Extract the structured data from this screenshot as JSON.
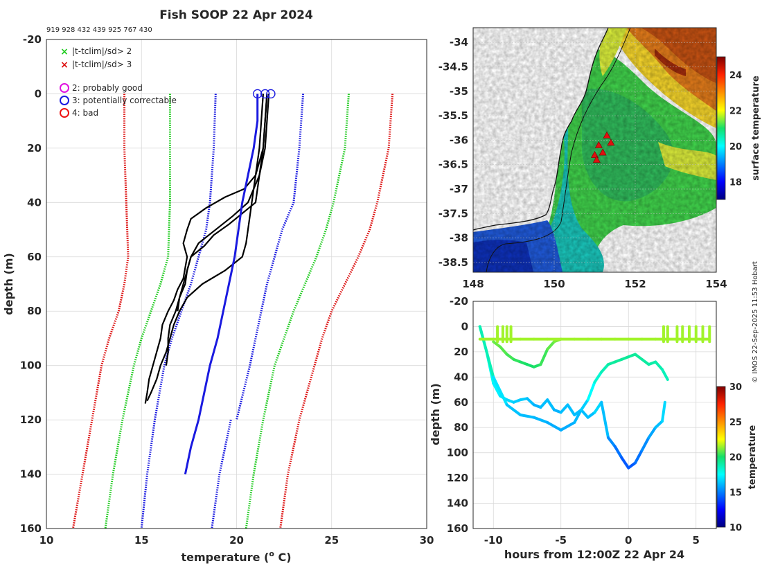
{
  "chart_data": [
    {
      "type": "line",
      "title": "Fish SOOP 22 Apr 2024",
      "subtitle": "919 928 432 439 925 767 430",
      "xlabel": "temperature (",
      "xlabel_sup": "o",
      "xlabel_tail": " C)",
      "ylabel": "depth (m)",
      "xlim": [
        10,
        30
      ],
      "ylim": [
        -20,
        160
      ],
      "xticks": [
        10,
        15,
        20,
        25,
        30
      ],
      "yticks": [
        -20,
        0,
        20,
        40,
        60,
        80,
        100,
        120,
        140,
        160
      ],
      "legend_flags": [
        {
          "label": "|t-tclim|/sd> 2",
          "color": "#22cc22"
        },
        {
          "label": "|t-tclim|/sd> 3",
          "color": "#dd1111"
        }
      ],
      "legend_qc": [
        {
          "label": "2: probably good",
          "color": "#e010e0"
        },
        {
          "label": "3: potentially correctable",
          "color": "#1a1ae0"
        },
        {
          "label": "4: bad",
          "color": "#ee1111"
        }
      ],
      "clim_lines": [
        {
          "name": "-3sd",
          "color": "#dd1111",
          "depth": [
            0,
            20,
            40,
            60,
            70,
            80,
            90,
            100,
            120,
            140,
            160
          ],
          "temp": [
            14.1,
            14.1,
            14.2,
            14.3,
            14.1,
            13.8,
            13.3,
            12.9,
            12.4,
            11.9,
            11.4
          ]
        },
        {
          "name": "-2sd",
          "color": "#22cc22",
          "depth": [
            0,
            20,
            40,
            60,
            70,
            80,
            90,
            100,
            120,
            140,
            160
          ],
          "temp": [
            16.5,
            16.5,
            16.5,
            16.4,
            16.0,
            15.5,
            15.0,
            14.6,
            14.0,
            13.5,
            13.1
          ]
        },
        {
          "name": "mean",
          "color": "#1a1ae0",
          "depth": [
            0,
            20,
            40,
            50,
            60,
            70,
            80,
            90,
            100,
            120,
            140,
            160
          ],
          "temp": [
            18.9,
            18.8,
            18.6,
            18.4,
            18.0,
            17.6,
            17.1,
            16.6,
            16.2,
            15.7,
            15.3,
            15.0
          ]
        },
        {
          "name": "mean-offset",
          "color": "#1a1ae0",
          "depth": [
            120,
            140,
            160
          ],
          "temp": [
            19.7,
            19.1,
            18.7
          ]
        },
        {
          "name": "+sd",
          "color": "#1a1ae0",
          "depth": [
            0,
            20,
            40,
            50,
            60,
            70,
            80,
            100,
            120
          ],
          "temp": [
            23.5,
            23.3,
            23.0,
            22.4,
            22.0,
            21.6,
            21.3,
            20.7,
            20.0
          ]
        },
        {
          "name": "+2sd",
          "color": "#22cc22",
          "depth": [
            0,
            20,
            30,
            40,
            50,
            60,
            70,
            80,
            90,
            100,
            120,
            140,
            160
          ],
          "temp": [
            25.9,
            25.7,
            25.4,
            25.1,
            24.7,
            24.2,
            23.6,
            23.0,
            22.5,
            22.0,
            21.4,
            20.9,
            20.5
          ]
        },
        {
          "name": "+3sd",
          "color": "#dd1111",
          "depth": [
            0,
            20,
            30,
            40,
            50,
            60,
            70,
            80,
            90,
            100,
            120,
            140,
            160
          ],
          "temp": [
            28.2,
            28.0,
            27.7,
            27.4,
            27.0,
            26.4,
            25.7,
            25.0,
            24.5,
            24.1,
            23.3,
            22.7,
            22.3
          ]
        }
      ],
      "profiles": [
        {
          "name": "profile-1",
          "color": "#000000",
          "depth": [
            0,
            10,
            20,
            30,
            35,
            38,
            42,
            46,
            50,
            55,
            60,
            64,
            68,
            72,
            76,
            80,
            85,
            90,
            95,
            100,
            105,
            110,
            114
          ],
          "temp": [
            21.6,
            21.5,
            21.4,
            21.0,
            20.4,
            19.4,
            18.4,
            17.6,
            17.4,
            17.2,
            17.4,
            17.3,
            17.2,
            16.9,
            16.7,
            16.4,
            16.1,
            16.0,
            15.8,
            15.6,
            15.4,
            15.3,
            15.2
          ]
        },
        {
          "name": "profile-2",
          "color": "#000000",
          "depth": [
            0,
            10,
            20,
            30,
            40,
            45,
            50,
            55,
            60,
            65,
            70,
            75,
            80,
            85,
            90,
            95,
            100
          ],
          "temp": [
            21.7,
            21.6,
            21.5,
            21.2,
            20.6,
            19.8,
            18.9,
            18.0,
            17.6,
            17.4,
            17.3,
            17.0,
            16.8,
            16.5,
            16.4,
            16.4,
            16.3
          ]
        },
        {
          "name": "profile-3",
          "color": "#000000",
          "depth": [
            0,
            10,
            20,
            30,
            40,
            45,
            50,
            55,
            60,
            65,
            70,
            75,
            80,
            85,
            90,
            95,
            100,
            105,
            110,
            113
          ],
          "temp": [
            21.4,
            21.3,
            21.2,
            21.0,
            20.8,
            20.7,
            20.6,
            20.5,
            20.3,
            19.4,
            18.2,
            17.4,
            17.0,
            16.7,
            16.5,
            16.3,
            16.0,
            15.8,
            15.5,
            15.3
          ]
        },
        {
          "name": "profile-4",
          "color": "#000000",
          "depth": [
            0,
            20,
            40,
            48,
            52,
            56,
            60,
            65,
            70,
            75,
            80
          ],
          "temp": [
            21.6,
            21.4,
            21.0,
            19.6,
            18.8,
            18.3,
            17.6,
            17.4,
            17.2,
            17.0,
            16.9
          ]
        }
      ],
      "flagged_profile": {
        "color": "#1a1ae0",
        "depth": [
          0,
          10,
          20,
          30,
          40,
          50,
          60,
          70,
          80,
          90,
          100,
          110,
          120,
          130,
          140
        ],
        "temp": [
          21.1,
          21.1,
          20.9,
          20.6,
          20.3,
          20.1,
          19.9,
          19.6,
          19.3,
          19.0,
          18.6,
          18.3,
          18.0,
          17.6,
          17.3
        ]
      },
      "qc_markers": [
        {
          "temp": 21.1,
          "depth": 0
        },
        {
          "temp": 21.5,
          "depth": 0
        },
        {
          "temp": 21.8,
          "depth": 0
        }
      ]
    },
    {
      "type": "heatmap",
      "xlim": [
        148,
        154
      ],
      "ylim": [
        -38.7,
        -33.7
      ],
      "xticks": [
        148,
        150,
        152,
        154
      ],
      "yticks": [
        -34,
        -34.5,
        -35,
        -35.5,
        -36,
        -36.5,
        -37,
        -37.5,
        -38,
        -38.5
      ],
      "colorbar_label": "surface temperature",
      "colorbar_range": [
        17,
        25
      ],
      "colorbar_ticks": [
        18,
        20,
        22,
        24
      ],
      "drop_markers": [
        {
          "lon": 151.3,
          "lat": -35.9
        },
        {
          "lon": 151.4,
          "lat": -36.05
        },
        {
          "lon": 151.1,
          "lat": -36.1
        },
        {
          "lon": 151.2,
          "lat": -36.25
        },
        {
          "lon": 151.0,
          "lat": -36.3
        },
        {
          "lon": 151.05,
          "lat": -36.4
        }
      ]
    },
    {
      "type": "scatter",
      "xlabel": "hours from 12:00Z 22 Apr 24",
      "ylabel": "depth (m)",
      "xlim": [
        -11.5,
        6.5
      ],
      "ylim": [
        -20,
        160
      ],
      "xticks": [
        -10,
        -5,
        0,
        5
      ],
      "yticks": [
        -20,
        0,
        20,
        40,
        60,
        80,
        100,
        120,
        140,
        160
      ],
      "colorbar_label": "temperature",
      "colorbar_range": [
        10,
        30
      ],
      "colorbar_ticks": [
        10,
        15,
        20,
        25,
        30
      ],
      "tracks": [
        {
          "hours": [
            -11,
            -10.5,
            -10,
            -9.5,
            -9,
            -8.5,
            -8,
            -7.5,
            -7,
            -6.5,
            -6,
            -5.5,
            -5,
            -4.5,
            -4,
            -3.5,
            -3,
            -2.5,
            -2,
            -1.5,
            -1,
            -0.5,
            0,
            0.5,
            1,
            1.5,
            2,
            2.5,
            2.7
          ],
          "depth": [
            0,
            20,
            45,
            55,
            58,
            60,
            58,
            57,
            62,
            64,
            58,
            66,
            68,
            62,
            70,
            66,
            72,
            68,
            60,
            88,
            95,
            104,
            112,
            108,
            98,
            88,
            80,
            75,
            60
          ],
          "temp": [
            20,
            18,
            17.5,
            17,
            17,
            16.5,
            16.5,
            16.5,
            16,
            16,
            16.5,
            16,
            16,
            16.5,
            16,
            16.5,
            16,
            16.5,
            17,
            15.5,
            15,
            14.5,
            14,
            14.5,
            15,
            15.5,
            16,
            16.5,
            17
          ]
        },
        {
          "hours": [
            -11,
            -10,
            -9,
            -8,
            -7,
            -6,
            -5,
            -4,
            -3.5,
            -3
          ],
          "depth": [
            0,
            40,
            62,
            70,
            72,
            76,
            82,
            76,
            66,
            58
          ],
          "temp": [
            20,
            17.5,
            16.5,
            16.2,
            16.2,
            16,
            15.8,
            16,
            16.3,
            16.8
          ]
        },
        {
          "hours": [
            -3,
            -2.5,
            -2,
            -1.5,
            -1,
            -0.5,
            0,
            0.5,
            1,
            1.5,
            2,
            2.5,
            2.9
          ],
          "depth": [
            58,
            44,
            36,
            30,
            28,
            26,
            24,
            22,
            26,
            30,
            28,
            34,
            42
          ],
          "temp": [
            17,
            18,
            18.5,
            19,
            19.2,
            19.2,
            19.2,
            19.2,
            19.2,
            19,
            19,
            18.8,
            18.5
          ]
        },
        {
          "hours": [
            -10,
            -9.5,
            -9,
            -8.5,
            -8,
            -7.5,
            -7,
            -6.5,
            -6,
            -5.5,
            -5
          ],
          "depth": [
            12,
            16,
            22,
            26,
            28,
            30,
            32,
            30,
            18,
            12,
            10
          ],
          "temp": [
            21,
            20.8,
            20.6,
            20.4,
            20.2,
            20,
            20,
            20.2,
            20.6,
            21,
            21.2
          ]
        },
        {
          "hours": [
            -11,
            -10,
            -9,
            -8,
            -7,
            -6,
            -5,
            -4,
            -3,
            -2,
            -1,
            0,
            1,
            2,
            3,
            4,
            5,
            6
          ],
          "depth": [
            10,
            10,
            10,
            10,
            10,
            10,
            10,
            10,
            10,
            10,
            10,
            10,
            10,
            10,
            10,
            10,
            10,
            10
          ],
          "temp": [
            21.5,
            21.5,
            21.5,
            21.5,
            21.5,
            21.5,
            21.5,
            21.5,
            21.5,
            21.5,
            21.5,
            21.5,
            21.5,
            21.5,
            21.5,
            21.5,
            21.5,
            21.5
          ]
        }
      ],
      "casts": [
        -9.7,
        -9.3,
        -9.0,
        -8.7,
        2.6,
        2.9,
        3.6,
        4.0,
        4.5,
        5.0,
        5.5,
        6.0
      ]
    }
  ],
  "watermark": "© IMOS 22-Sep-2025 11:53 Hobart"
}
